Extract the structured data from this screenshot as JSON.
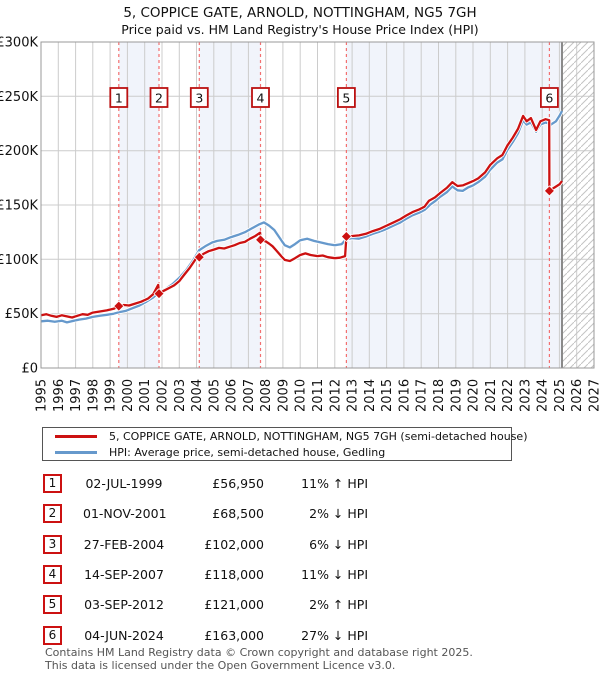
{
  "title": "5, COPPICE GATE, ARNOLD, NOTTINGHAM, NG5 7GH",
  "subtitle": "Price paid vs. HM Land Registry's House Price Index (HPI)",
  "legend": {
    "items": [
      {
        "label": "5, COPPICE GATE, ARNOLD, NOTTINGHAM, NG5 7GH (semi-detached house)",
        "color": "#cc1111"
      },
      {
        "label": "HPI: Average price, semi-detached house, Gedling",
        "color": "#6699cc"
      }
    ]
  },
  "chart_data": {
    "type": "line",
    "xlim": [
      1995,
      2027
    ],
    "ylim": [
      0,
      300
    ],
    "x_ticks": [
      1995,
      1996,
      1997,
      1998,
      1999,
      2000,
      2001,
      2002,
      2003,
      2004,
      2005,
      2006,
      2007,
      2008,
      2009,
      2010,
      2011,
      2012,
      2013,
      2014,
      2015,
      2016,
      2017,
      2018,
      2019,
      2020,
      2021,
      2022,
      2023,
      2024,
      2025,
      2026,
      2027
    ],
    "y_ticks": [
      {
        "value": 0,
        "label": "£0"
      },
      {
        "value": 50,
        "label": "£50K"
      },
      {
        "value": 100,
        "label": "£100K"
      },
      {
        "value": 150,
        "label": "£150K"
      },
      {
        "value": 200,
        "label": "£200K"
      },
      {
        "value": 250,
        "label": "£250K"
      },
      {
        "value": 300,
        "label": "£300K"
      }
    ],
    "grid": true,
    "legend_position": "bottom",
    "colors": {
      "price_paid": "#cc1111",
      "hpi": "#6699cc",
      "sale_dash": "#f37070",
      "band": "#f1f4fb",
      "gridline": "#cccccc",
      "plot_border": "#999999",
      "hatch": "#c4c4c4"
    },
    "shaded_bands": [
      [
        1999.5,
        2001.83
      ],
      [
        2004.16,
        2007.7
      ],
      [
        2012.67,
        2025.15
      ]
    ],
    "hatch_start": 2025.15,
    "sales": [
      {
        "n": "1",
        "date": "02-JUL-1999",
        "year": 1999.5,
        "value_k": 56.95
      },
      {
        "n": "2",
        "date": "01-NOV-2001",
        "year": 2001.83,
        "value_k": 68.5
      },
      {
        "n": "3",
        "date": "27-FEB-2004",
        "year": 2004.16,
        "value_k": 102
      },
      {
        "n": "4",
        "date": "14-SEP-2007",
        "year": 2007.7,
        "value_k": 118
      },
      {
        "n": "5",
        "date": "03-SEP-2012",
        "year": 2012.67,
        "value_k": 121
      },
      {
        "n": "6",
        "date": "04-JUN-2024",
        "year": 2024.42,
        "value_k": 163
      }
    ],
    "series": [
      {
        "name": "HPI: Average price, semi-detached house, Gedling",
        "color": "#6699cc",
        "points": [
          [
            1995.0,
            43
          ],
          [
            1995.4,
            43.5
          ],
          [
            1995.8,
            42.5
          ],
          [
            1996.2,
            43.5
          ],
          [
            1996.5,
            42
          ],
          [
            1996.9,
            43.5
          ],
          [
            1997.2,
            44.5
          ],
          [
            1997.6,
            45.5
          ],
          [
            1998.0,
            47
          ],
          [
            1998.4,
            48
          ],
          [
            1998.8,
            49
          ],
          [
            1999.2,
            50
          ],
          [
            1999.5,
            51.3
          ],
          [
            1999.9,
            52.5
          ],
          [
            2000.3,
            55
          ],
          [
            2000.7,
            57.5
          ],
          [
            2001.1,
            61
          ],
          [
            2001.5,
            65
          ],
          [
            2001.83,
            69.9
          ],
          [
            2002.2,
            72.5
          ],
          [
            2002.6,
            77
          ],
          [
            2003.0,
            83
          ],
          [
            2003.4,
            90
          ],
          [
            2003.8,
            99
          ],
          [
            2004.16,
            108.5
          ],
          [
            2004.5,
            112
          ],
          [
            2004.9,
            115.5
          ],
          [
            2005.2,
            117
          ],
          [
            2005.6,
            118
          ],
          [
            2006.0,
            120.5
          ],
          [
            2006.4,
            122.5
          ],
          [
            2006.8,
            125
          ],
          [
            2007.2,
            128.5
          ],
          [
            2007.6,
            132
          ],
          [
            2007.9,
            134
          ],
          [
            2008.2,
            131
          ],
          [
            2008.5,
            127
          ],
          [
            2008.8,
            120
          ],
          [
            2009.1,
            113
          ],
          [
            2009.4,
            111
          ],
          [
            2009.7,
            114
          ],
          [
            2010.0,
            117.5
          ],
          [
            2010.4,
            119
          ],
          [
            2010.8,
            117
          ],
          [
            2011.2,
            115.5
          ],
          [
            2011.6,
            114
          ],
          [
            2012.0,
            113
          ],
          [
            2012.4,
            114
          ],
          [
            2012.67,
            118.6
          ],
          [
            2013.0,
            119.5
          ],
          [
            2013.4,
            119
          ],
          [
            2013.8,
            121
          ],
          [
            2014.2,
            123.5
          ],
          [
            2014.6,
            125.5
          ],
          [
            2015.0,
            128
          ],
          [
            2015.4,
            131
          ],
          [
            2015.8,
            134
          ],
          [
            2016.1,
            137
          ],
          [
            2016.5,
            140.5
          ],
          [
            2016.9,
            143
          ],
          [
            2017.2,
            145.5
          ],
          [
            2017.5,
            150
          ],
          [
            2017.8,
            153.5
          ],
          [
            2018.1,
            157.5
          ],
          [
            2018.5,
            162
          ],
          [
            2018.8,
            167
          ],
          [
            2019.1,
            163.5
          ],
          [
            2019.4,
            163
          ],
          [
            2019.7,
            166
          ],
          [
            2020.0,
            168
          ],
          [
            2020.3,
            171
          ],
          [
            2020.7,
            176
          ],
          [
            2021.0,
            182.5
          ],
          [
            2021.4,
            189
          ],
          [
            2021.7,
            192
          ],
          [
            2022.0,
            201
          ],
          [
            2022.3,
            208
          ],
          [
            2022.6,
            216
          ],
          [
            2022.9,
            228
          ],
          [
            2023.1,
            224
          ],
          [
            2023.35,
            226
          ],
          [
            2023.65,
            217.5
          ],
          [
            2023.9,
            224
          ],
          [
            2024.2,
            226
          ],
          [
            2024.5,
            224
          ],
          [
            2024.8,
            227
          ],
          [
            2025.0,
            232
          ],
          [
            2025.15,
            236.5
          ]
        ]
      },
      {
        "name": "5, COPPICE GATE, ARNOLD, NOTTINGHAM, NG5 7GH (semi-detached house)",
        "color": "#cc1111",
        "points": [
          [
            1995.0,
            48.5
          ],
          [
            1995.3,
            49.5
          ],
          [
            1995.6,
            48
          ],
          [
            1995.9,
            47
          ],
          [
            1996.2,
            48.5
          ],
          [
            1996.5,
            47.5
          ],
          [
            1996.8,
            46.5
          ],
          [
            1997.1,
            48
          ],
          [
            1997.4,
            49.5
          ],
          [
            1997.7,
            49
          ],
          [
            1998.0,
            51
          ],
          [
            1998.4,
            52
          ],
          [
            1998.8,
            53
          ],
          [
            1999.2,
            54.5
          ],
          [
            1999.5,
            56.95
          ],
          [
            1999.8,
            58
          ],
          [
            2000.1,
            57.5
          ],
          [
            2000.4,
            59
          ],
          [
            2000.8,
            61
          ],
          [
            2001.2,
            64
          ],
          [
            2001.5,
            68
          ],
          [
            2001.78,
            76.5
          ],
          [
            2001.83,
            68.5
          ],
          [
            2002.1,
            71
          ],
          [
            2002.4,
            73.5
          ],
          [
            2002.7,
            76
          ],
          [
            2003.0,
            80
          ],
          [
            2003.3,
            86
          ],
          [
            2003.6,
            92
          ],
          [
            2003.9,
            99
          ],
          [
            2004.14,
            105.5
          ],
          [
            2004.16,
            102
          ],
          [
            2004.4,
            105
          ],
          [
            2004.7,
            107.5
          ],
          [
            2005.0,
            109
          ],
          [
            2005.3,
            110.5
          ],
          [
            2005.6,
            110
          ],
          [
            2005.9,
            111.5
          ],
          [
            2006.2,
            113
          ],
          [
            2006.5,
            115
          ],
          [
            2006.8,
            116
          ],
          [
            2007.1,
            119
          ],
          [
            2007.4,
            121.5
          ],
          [
            2007.68,
            124.5
          ],
          [
            2007.7,
            118
          ],
          [
            2008.0,
            116.5
          ],
          [
            2008.2,
            114.5
          ],
          [
            2008.4,
            112
          ],
          [
            2008.6,
            108.5
          ],
          [
            2008.9,
            103
          ],
          [
            2009.1,
            99.5
          ],
          [
            2009.4,
            98.5
          ],
          [
            2009.7,
            101
          ],
          [
            2010.0,
            104
          ],
          [
            2010.3,
            105.5
          ],
          [
            2010.6,
            104
          ],
          [
            2011.0,
            103
          ],
          [
            2011.3,
            103.5
          ],
          [
            2011.6,
            102
          ],
          [
            2012.0,
            101
          ],
          [
            2012.3,
            101.5
          ],
          [
            2012.6,
            103
          ],
          [
            2012.67,
            121
          ],
          [
            2013.0,
            121.5
          ],
          [
            2013.4,
            122
          ],
          [
            2013.8,
            123.5
          ],
          [
            2014.2,
            126
          ],
          [
            2014.6,
            128
          ],
          [
            2015.0,
            131
          ],
          [
            2015.4,
            134
          ],
          [
            2015.8,
            137
          ],
          [
            2016.1,
            140
          ],
          [
            2016.5,
            143.5
          ],
          [
            2016.9,
            146
          ],
          [
            2017.2,
            148.5
          ],
          [
            2017.45,
            154
          ],
          [
            2017.8,
            157
          ],
          [
            2018.1,
            161
          ],
          [
            2018.5,
            166
          ],
          [
            2018.8,
            171
          ],
          [
            2019.1,
            167.5
          ],
          [
            2019.4,
            168
          ],
          [
            2019.7,
            170
          ],
          [
            2020.0,
            172
          ],
          [
            2020.3,
            174.5
          ],
          [
            2020.7,
            180
          ],
          [
            2021.0,
            187
          ],
          [
            2021.4,
            193
          ],
          [
            2021.7,
            196
          ],
          [
            2022.0,
            205
          ],
          [
            2022.3,
            212
          ],
          [
            2022.6,
            220
          ],
          [
            2022.9,
            232
          ],
          [
            2023.1,
            227
          ],
          [
            2023.35,
            230
          ],
          [
            2023.65,
            219
          ],
          [
            2023.9,
            227
          ],
          [
            2024.2,
            229
          ],
          [
            2024.41,
            228
          ],
          [
            2024.42,
            163
          ],
          [
            2024.7,
            166
          ],
          [
            2025.0,
            169
          ],
          [
            2025.15,
            172
          ]
        ]
      }
    ]
  },
  "table": {
    "rows": [
      {
        "num": "1",
        "date": "02-JUL-1999",
        "price": "£56,950",
        "vs_hpi": "11% ↑ HPI"
      },
      {
        "num": "2",
        "date": "01-NOV-2001",
        "price": "£68,500",
        "vs_hpi": "2% ↓ HPI"
      },
      {
        "num": "3",
        "date": "27-FEB-2004",
        "price": "£102,000",
        "vs_hpi": "6% ↓ HPI"
      },
      {
        "num": "4",
        "date": "14-SEP-2007",
        "price": "£118,000",
        "vs_hpi": "11% ↓ HPI"
      },
      {
        "num": "5",
        "date": "03-SEP-2012",
        "price": "£121,000",
        "vs_hpi": "2% ↑ HPI"
      },
      {
        "num": "6",
        "date": "04-JUN-2024",
        "price": "£163,000",
        "vs_hpi": "27% ↓ HPI"
      }
    ]
  },
  "footer": {
    "line1": "Contains HM Land Registry data © Crown copyright and database right 2025.",
    "line2": "This data is licensed under the Open Government Licence v3.0."
  }
}
